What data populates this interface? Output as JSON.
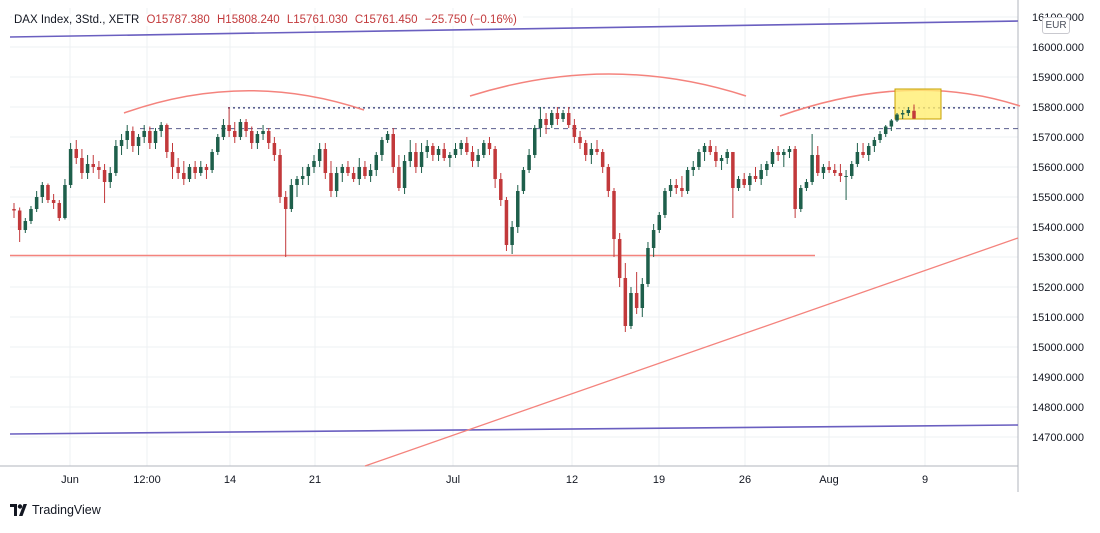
{
  "header": {
    "instrument": "DAX Index, 3Std., XETR",
    "open": "O15787.380",
    "high": "H15808.240",
    "low": "L15761.030",
    "close": "C15761.450",
    "change": "−25.750 (−0.16%)"
  },
  "currency": "EUR",
  "brand": "TradingView",
  "colors": {
    "up": "#1e5f4b",
    "down": "#c2393b",
    "grid": "#eef0f3",
    "trend_red": "#f4837d",
    "trend_purple": "#6a5fc0",
    "dotted_navy": "#2c3270",
    "highlight": "#ffee70"
  },
  "chart_data": {
    "type": "candlestick",
    "title": "DAX Index, 3Std., XETR",
    "ylim": [
      14600,
      16200
    ],
    "y_ticks": [
      16100,
      16000,
      15900,
      15800,
      15700,
      15600,
      15500,
      15400,
      15300,
      15200,
      15100,
      15000,
      14900,
      14800,
      14700
    ],
    "x_ticks": [
      "Jun",
      "12:00",
      "14",
      "21",
      "Jul",
      "12",
      "19",
      "26",
      "Aug",
      "9"
    ],
    "candles": [
      [
        15460,
        15480,
        15430,
        15455
      ],
      [
        15455,
        15465,
        15350,
        15390
      ],
      [
        15390,
        15430,
        15380,
        15420
      ],
      [
        15420,
        15470,
        15410,
        15460
      ],
      [
        15460,
        15520,
        15450,
        15500
      ],
      [
        15500,
        15550,
        15480,
        15540
      ],
      [
        15540,
        15545,
        15480,
        15490
      ],
      [
        15490,
        15510,
        15460,
        15480
      ],
      [
        15480,
        15490,
        15420,
        15430
      ],
      [
        15430,
        15560,
        15425,
        15540
      ],
      [
        15540,
        15680,
        15530,
        15660
      ],
      [
        15660,
        15690,
        15610,
        15630
      ],
      [
        15630,
        15660,
        15560,
        15580
      ],
      [
        15580,
        15640,
        15560,
        15610
      ],
      [
        15610,
        15640,
        15580,
        15600
      ],
      [
        15600,
        15620,
        15560,
        15590
      ],
      [
        15590,
        15610,
        15480,
        15550
      ],
      [
        15550,
        15600,
        15530,
        15580
      ],
      [
        15580,
        15690,
        15570,
        15670
      ],
      [
        15670,
        15710,
        15640,
        15690
      ],
      [
        15690,
        15740,
        15660,
        15720
      ],
      [
        15720,
        15735,
        15650,
        15670
      ],
      [
        15670,
        15710,
        15640,
        15700
      ],
      [
        15700,
        15740,
        15680,
        15720
      ],
      [
        15720,
        15735,
        15660,
        15680
      ],
      [
        15680,
        15730,
        15660,
        15720
      ],
      [
        15720,
        15750,
        15700,
        15740
      ],
      [
        15740,
        15745,
        15630,
        15650
      ],
      [
        15650,
        15680,
        15560,
        15600
      ],
      [
        15600,
        15630,
        15560,
        15580
      ],
      [
        15580,
        15620,
        15540,
        15560
      ],
      [
        15560,
        15610,
        15550,
        15600
      ],
      [
        15600,
        15620,
        15560,
        15580
      ],
      [
        15580,
        15620,
        15570,
        15600
      ],
      [
        15600,
        15610,
        15560,
        15590
      ],
      [
        15590,
        15660,
        15580,
        15650
      ],
      [
        15650,
        15710,
        15640,
        15700
      ],
      [
        15700,
        15760,
        15690,
        15740
      ],
      [
        15740,
        15800,
        15700,
        15720
      ],
      [
        15720,
        15750,
        15680,
        15700
      ],
      [
        15700,
        15760,
        15690,
        15750
      ],
      [
        15750,
        15760,
        15700,
        15720
      ],
      [
        15720,
        15735,
        15660,
        15680
      ],
      [
        15680,
        15720,
        15660,
        15710
      ],
      [
        15710,
        15740,
        15690,
        15720
      ],
      [
        15720,
        15730,
        15660,
        15680
      ],
      [
        15680,
        15700,
        15620,
        15640
      ],
      [
        15640,
        15660,
        15480,
        15500
      ],
      [
        15500,
        15520,
        15300,
        15460
      ],
      [
        15460,
        15560,
        15450,
        15540
      ],
      [
        15540,
        15570,
        15500,
        15560
      ],
      [
        15560,
        15600,
        15540,
        15570
      ],
      [
        15570,
        15610,
        15540,
        15600
      ],
      [
        15600,
        15640,
        15580,
        15620
      ],
      [
        15620,
        15680,
        15600,
        15660
      ],
      [
        15660,
        15680,
        15560,
        15580
      ],
      [
        15580,
        15620,
        15500,
        15520
      ],
      [
        15520,
        15600,
        15500,
        15580
      ],
      [
        15580,
        15610,
        15550,
        15600
      ],
      [
        15600,
        15620,
        15570,
        15580
      ],
      [
        15580,
        15600,
        15550,
        15560
      ],
      [
        15560,
        15630,
        15540,
        15600
      ],
      [
        15600,
        15620,
        15560,
        15570
      ],
      [
        15570,
        15610,
        15550,
        15590
      ],
      [
        15590,
        15650,
        15570,
        15640
      ],
      [
        15640,
        15700,
        15620,
        15690
      ],
      [
        15690,
        15720,
        15680,
        15710
      ],
      [
        15710,
        15730,
        15580,
        15600
      ],
      [
        15600,
        15640,
        15520,
        15530
      ],
      [
        15530,
        15640,
        15510,
        15620
      ],
      [
        15620,
        15690,
        15600,
        15650
      ],
      [
        15650,
        15680,
        15580,
        15600
      ],
      [
        15600,
        15680,
        15580,
        15650
      ],
      [
        15650,
        15690,
        15630,
        15670
      ],
      [
        15670,
        15680,
        15620,
        15640
      ],
      [
        15640,
        15670,
        15620,
        15660
      ],
      [
        15660,
        15680,
        15620,
        15630
      ],
      [
        15630,
        15650,
        15600,
        15640
      ],
      [
        15640,
        15680,
        15630,
        15660
      ],
      [
        15660,
        15690,
        15640,
        15680
      ],
      [
        15680,
        15700,
        15640,
        15650
      ],
      [
        15650,
        15670,
        15600,
        15620
      ],
      [
        15620,
        15660,
        15600,
        15640
      ],
      [
        15640,
        15690,
        15630,
        15680
      ],
      [
        15680,
        15700,
        15640,
        15660
      ],
      [
        15660,
        15670,
        15530,
        15560
      ],
      [
        15560,
        15580,
        15470,
        15490
      ],
      [
        15490,
        15500,
        15320,
        15340
      ],
      [
        15340,
        15420,
        15310,
        15400
      ],
      [
        15400,
        15540,
        15380,
        15520
      ],
      [
        15520,
        15600,
        15510,
        15590
      ],
      [
        15590,
        15660,
        15580,
        15640
      ],
      [
        15640,
        15740,
        15630,
        15730
      ],
      [
        15730,
        15800,
        15700,
        15760
      ],
      [
        15760,
        15780,
        15710,
        15740
      ],
      [
        15740,
        15790,
        15730,
        15780
      ],
      [
        15780,
        15800,
        15740,
        15760
      ],
      [
        15760,
        15790,
        15750,
        15780
      ],
      [
        15780,
        15800,
        15730,
        15740
      ],
      [
        15740,
        15760,
        15680,
        15700
      ],
      [
        15700,
        15720,
        15660,
        15680
      ],
      [
        15680,
        15690,
        15620,
        15640
      ],
      [
        15640,
        15680,
        15610,
        15660
      ],
      [
        15660,
        15690,
        15640,
        15650
      ],
      [
        15650,
        15660,
        15580,
        15600
      ],
      [
        15600,
        15610,
        15500,
        15520
      ],
      [
        15520,
        15530,
        15300,
        15360
      ],
      [
        15360,
        15380,
        15200,
        15230
      ],
      [
        15230,
        15280,
        15050,
        15070
      ],
      [
        15070,
        15200,
        15060,
        15180
      ],
      [
        15180,
        15250,
        15110,
        15130
      ],
      [
        15130,
        15230,
        15100,
        15210
      ],
      [
        15210,
        15350,
        15200,
        15330
      ],
      [
        15330,
        15410,
        15300,
        15390
      ],
      [
        15390,
        15450,
        15380,
        15440
      ],
      [
        15440,
        15530,
        15430,
        15520
      ],
      [
        15520,
        15560,
        15500,
        15540
      ],
      [
        15540,
        15560,
        15510,
        15530
      ],
      [
        15530,
        15570,
        15500,
        15520
      ],
      [
        15520,
        15600,
        15510,
        15590
      ],
      [
        15590,
        15620,
        15570,
        15600
      ],
      [
        15600,
        15660,
        15590,
        15650
      ],
      [
        15650,
        15680,
        15620,
        15670
      ],
      [
        15670,
        15690,
        15640,
        15650
      ],
      [
        15650,
        15670,
        15600,
        15620
      ],
      [
        15620,
        15640,
        15590,
        15630
      ],
      [
        15630,
        15660,
        15610,
        15650
      ],
      [
        15650,
        15650,
        15430,
        15530
      ],
      [
        15530,
        15570,
        15520,
        15560
      ],
      [
        15560,
        15580,
        15530,
        15540
      ],
      [
        15540,
        15580,
        15520,
        15570
      ],
      [
        15570,
        15600,
        15550,
        15560
      ],
      [
        15560,
        15610,
        15540,
        15590
      ],
      [
        15590,
        15620,
        15570,
        15610
      ],
      [
        15610,
        15660,
        15600,
        15650
      ],
      [
        15650,
        15670,
        15620,
        15640
      ],
      [
        15640,
        15660,
        15600,
        15650
      ],
      [
        15650,
        15670,
        15630,
        15660
      ],
      [
        15660,
        15670,
        15430,
        15460
      ],
      [
        15460,
        15540,
        15450,
        15530
      ],
      [
        15530,
        15560,
        15520,
        15550
      ],
      [
        15550,
        15710,
        15540,
        15640
      ],
      [
        15640,
        15670,
        15570,
        15580
      ],
      [
        15580,
        15610,
        15560,
        15600
      ],
      [
        15600,
        15620,
        15580,
        15590
      ],
      [
        15590,
        15610,
        15570,
        15580
      ],
      [
        15580,
        15610,
        15550,
        15570
      ],
      [
        15570,
        15590,
        15490,
        15570
      ],
      [
        15570,
        15620,
        15560,
        15610
      ],
      [
        15610,
        15680,
        15600,
        15650
      ],
      [
        15650,
        15680,
        15630,
        15640
      ],
      [
        15640,
        15680,
        15620,
        15670
      ],
      [
        15670,
        15700,
        15650,
        15690
      ],
      [
        15690,
        15720,
        15680,
        15710
      ],
      [
        15710,
        15740,
        15700,
        15735
      ],
      [
        15735,
        15760,
        15720,
        15755
      ],
      [
        15755,
        15780,
        15750,
        15775
      ],
      [
        15775,
        15790,
        15760,
        15780
      ],
      [
        15780,
        15800,
        15770,
        15790
      ],
      [
        15787.38,
        15808.24,
        15761.03,
        15761.45
      ]
    ],
    "annotations": {
      "horizontal_dotted": 15797,
      "horizontal_dashed": 15728,
      "horizontal_support": 15305,
      "highlight_box": {
        "price_top": 15860,
        "price_bottom": 15760
      }
    }
  }
}
